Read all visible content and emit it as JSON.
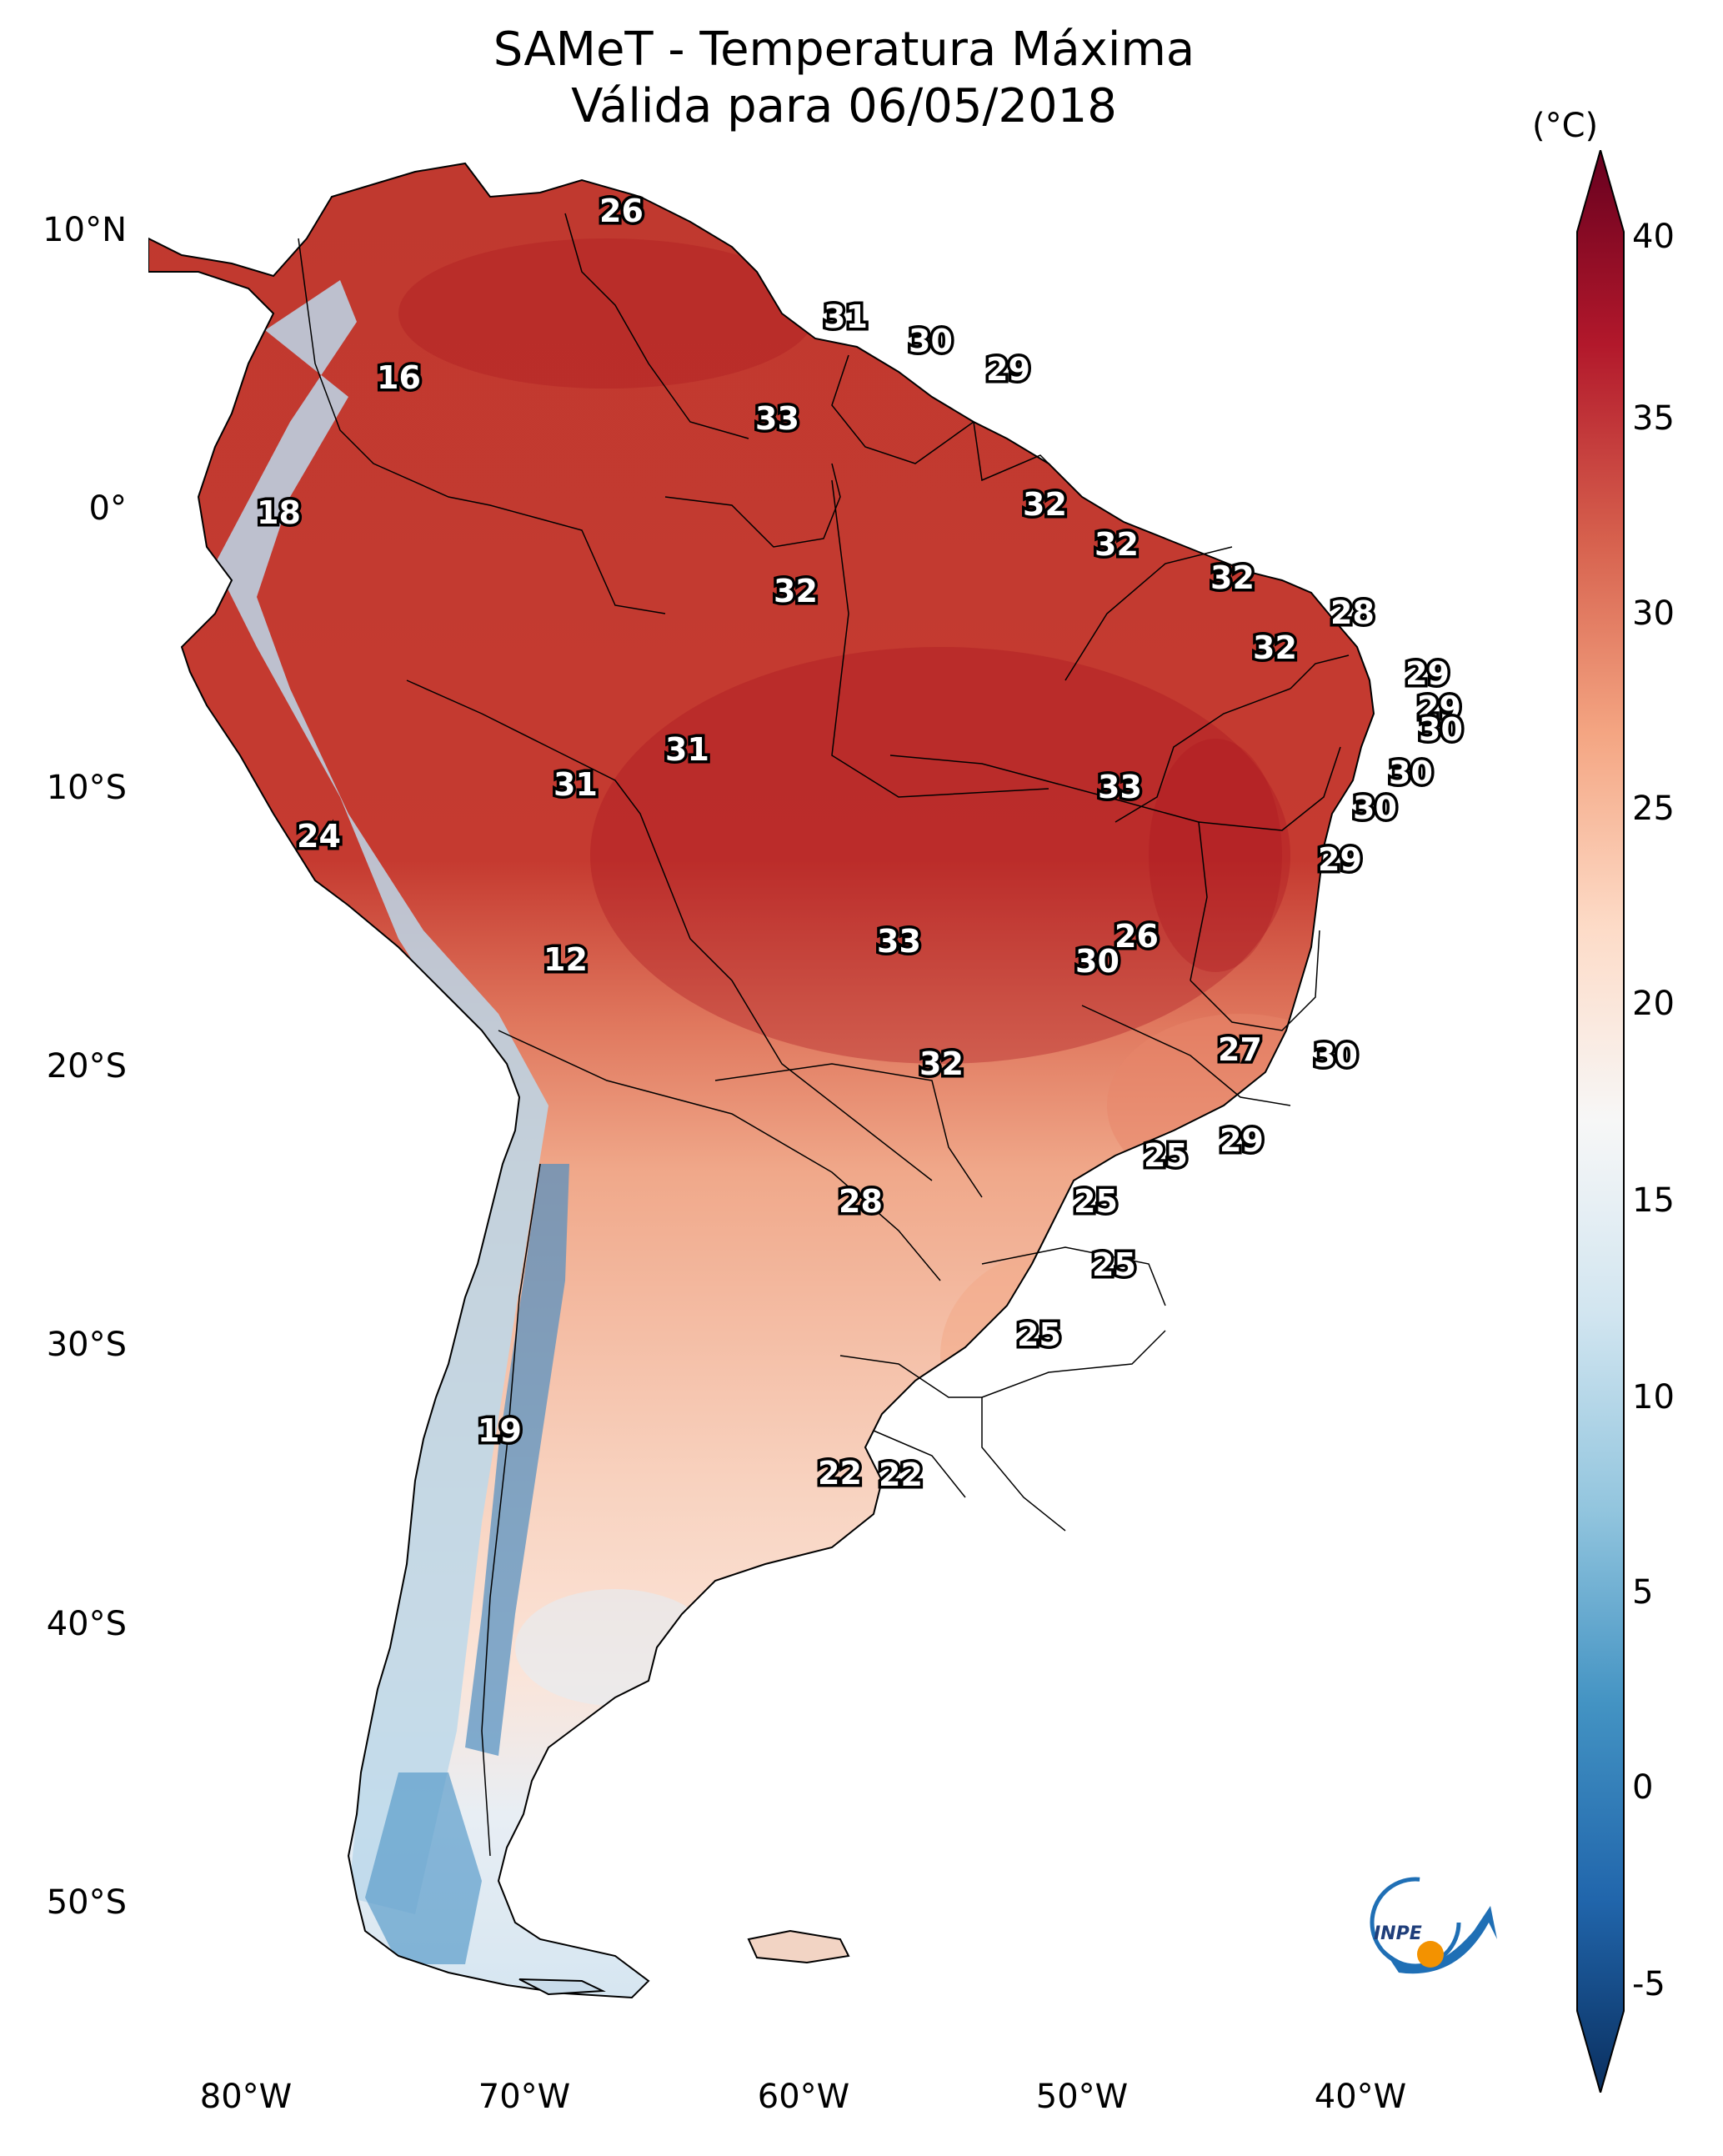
{
  "title": {
    "line1": "SAMeT - Temperatura Máxima",
    "line2": "Válida para 06/05/2018"
  },
  "map": {
    "lat_ticks": [
      "10°N",
      "0°",
      "10°S",
      "20°S",
      "30°S",
      "40°S",
      "50°S"
    ],
    "lon_ticks": [
      "80°W",
      "70°W",
      "60°W",
      "50°W",
      "40°W"
    ],
    "logo_text": "INPE",
    "station_values": [
      "26",
      "31",
      "30",
      "29",
      "16",
      "33",
      "18",
      "32",
      "32",
      "32",
      "32",
      "28",
      "32",
      "29",
      "29",
      "30",
      "31",
      "31",
      "30",
      "24",
      "33",
      "30",
      "29",
      "12",
      "33",
      "26",
      "30",
      "27",
      "30",
      "32",
      "25",
      "29",
      "28",
      "25",
      "25",
      "25",
      "19",
      "22",
      "22"
    ]
  },
  "colorbar": {
    "unit": "(°C)",
    "ticks": [
      "40",
      "35",
      "30",
      "25",
      "20",
      "15",
      "10",
      "5",
      "0",
      "-5"
    ],
    "min": -5,
    "max": 40,
    "colors": [
      "#0a2f5f",
      "#2166ac",
      "#4393c3",
      "#92c5de",
      "#d1e5f0",
      "#f7f7f7",
      "#fddbc7",
      "#f4a582",
      "#d6604d",
      "#b2182b",
      "#67001f"
    ]
  }
}
